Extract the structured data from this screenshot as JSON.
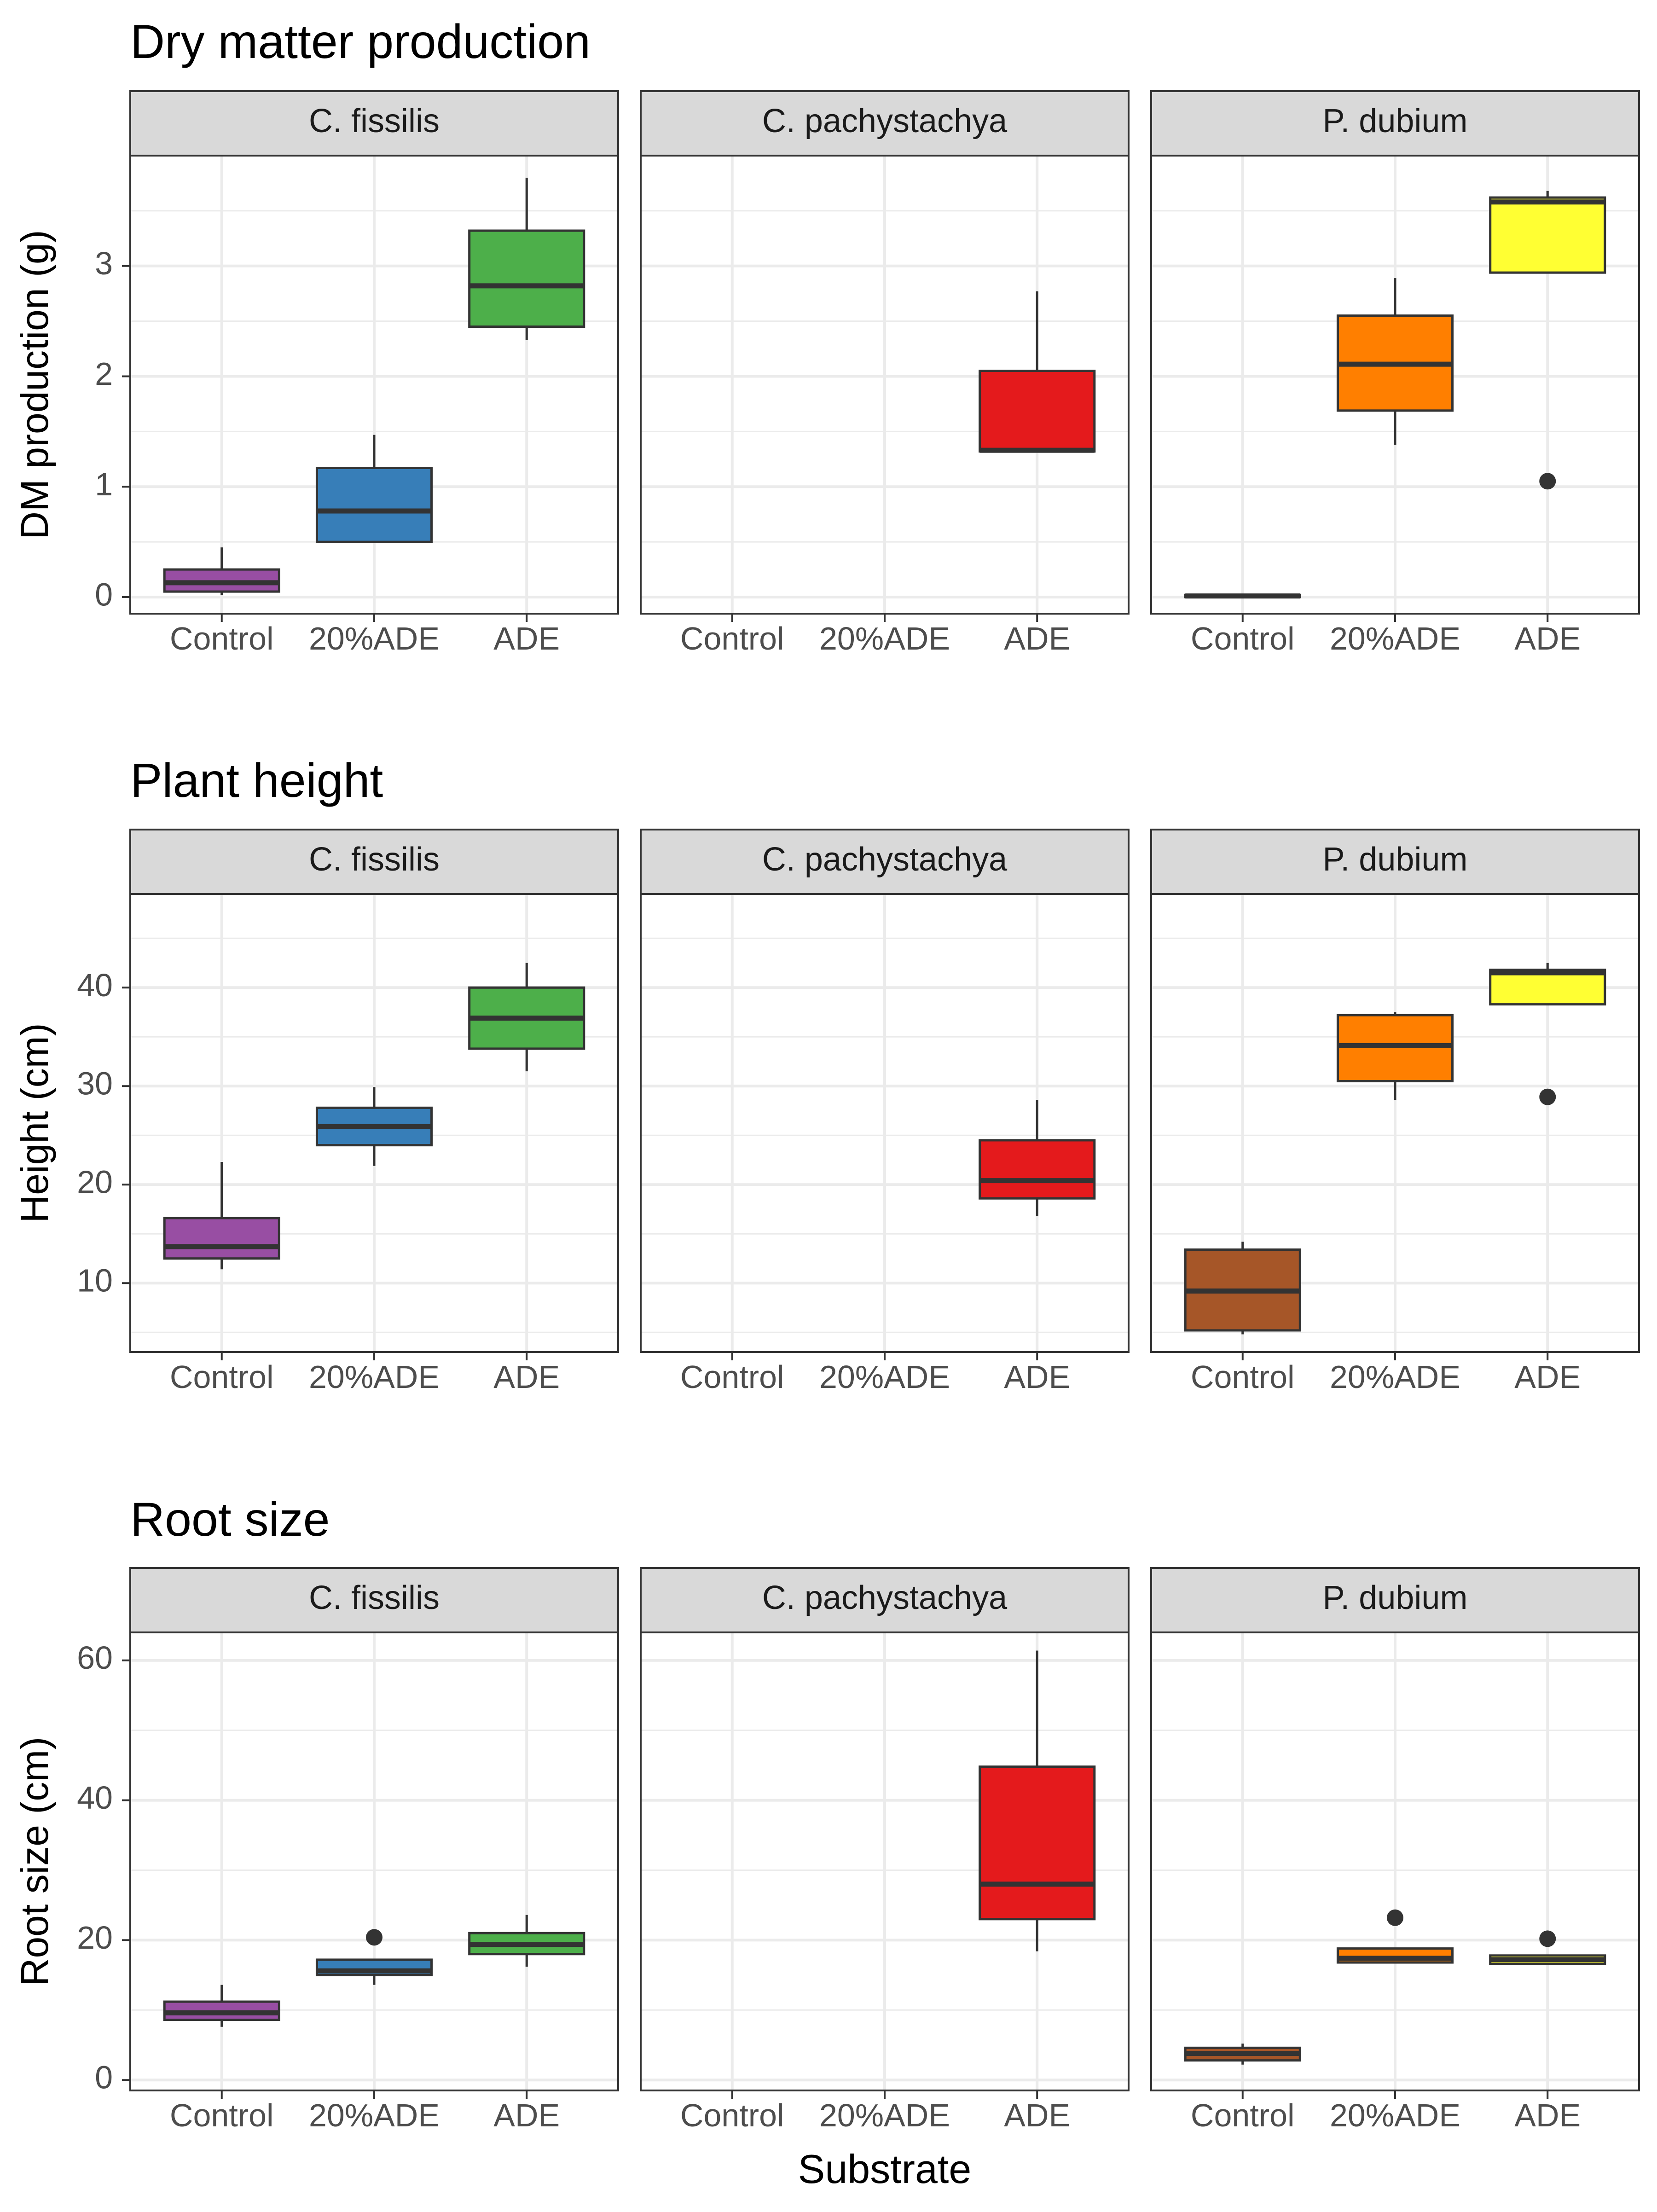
{
  "colors": {
    "Control": "#984EA3",
    "20%ADE": "#377EB8",
    "ADE": "#4DAF4A",
    "c_pachystachya_ADE": "#E41A1C",
    "p_dubium_Control": "#A65628",
    "p_dubium_20%ADE": "#FF7F00",
    "p_dubium_ADE": "#FFFF33",
    "panel_strip": "#D9D9D9",
    "grid": "#EBEBEB",
    "border": "#333333"
  },
  "x_axis_title": "Substrate",
  "chart_data": [
    {
      "type": "box",
      "title": "Dry matter production",
      "ylabel": "DM production (g)",
      "ylim": [
        -0.15,
        4.0
      ],
      "yticks": [
        0,
        1,
        2,
        3
      ],
      "ytick_labels": [
        "0",
        "1",
        "2",
        "3"
      ],
      "categories": [
        "Control",
        "20%ADE",
        "ADE"
      ],
      "panels": [
        {
          "name": "C. fissilis",
          "boxes": [
            {
              "category": "Control",
              "color": "#984EA3",
              "whisker_low": 0.02,
              "q1": 0.05,
              "median": 0.13,
              "q3": 0.25,
              "whisker_high": 0.45,
              "outliers": []
            },
            {
              "category": "20%ADE",
              "color": "#377EB8",
              "whisker_low": 0.5,
              "q1": 0.5,
              "median": 0.78,
              "q3": 1.17,
              "whisker_high": 1.47,
              "outliers": []
            },
            {
              "category": "ADE",
              "color": "#4DAF4A",
              "whisker_low": 2.33,
              "q1": 2.45,
              "median": 2.82,
              "q3": 3.32,
              "whisker_high": 3.8,
              "outliers": []
            }
          ]
        },
        {
          "name": "C. pachystachya",
          "boxes": [
            {
              "category": "ADE",
              "color": "#E41A1C",
              "whisker_low": 1.32,
              "q1": 1.32,
              "median": 1.33,
              "q3": 2.05,
              "whisker_high": 2.77,
              "outliers": []
            }
          ]
        },
        {
          "name": "P. dubium",
          "boxes": [
            {
              "category": "Control",
              "color": "#A65628",
              "whisker_low": 0.0,
              "q1": 0.0,
              "median": 0.01,
              "q3": 0.02,
              "whisker_high": 0.02,
              "outliers": []
            },
            {
              "category": "20%ADE",
              "color": "#FF7F00",
              "whisker_low": 1.38,
              "q1": 1.69,
              "median": 2.11,
              "q3": 2.55,
              "whisker_high": 2.89,
              "outliers": []
            },
            {
              "category": "ADE",
              "color": "#FFFF33",
              "whisker_low": 2.94,
              "q1": 2.94,
              "median": 3.58,
              "q3": 3.62,
              "whisker_high": 3.68,
              "outliers": [
                1.05
              ]
            }
          ]
        }
      ]
    },
    {
      "type": "box",
      "title": "Plant height",
      "ylabel": "Height (cm)",
      "ylim": [
        3,
        49.5
      ],
      "yticks": [
        10,
        20,
        30,
        40
      ],
      "ytick_labels": [
        "10",
        "20",
        "30",
        "40"
      ],
      "categories": [
        "Control",
        "20%ADE",
        "ADE"
      ],
      "panels": [
        {
          "name": "C. fissilis",
          "boxes": [
            {
              "category": "Control",
              "color": "#984EA3",
              "whisker_low": 11.4,
              "q1": 12.5,
              "median": 13.7,
              "q3": 16.6,
              "whisker_high": 22.3,
              "outliers": []
            },
            {
              "category": "20%ADE",
              "color": "#377EB8",
              "whisker_low": 21.9,
              "q1": 24.0,
              "median": 25.9,
              "q3": 27.8,
              "whisker_high": 29.9,
              "outliers": []
            },
            {
              "category": "ADE",
              "color": "#4DAF4A",
              "whisker_low": 31.5,
              "q1": 33.8,
              "median": 36.9,
              "q3": 40.0,
              "whisker_high": 42.5,
              "outliers": []
            }
          ]
        },
        {
          "name": "C. pachystachya",
          "boxes": [
            {
              "category": "ADE",
              "color": "#E41A1C",
              "whisker_low": 16.8,
              "q1": 18.6,
              "median": 20.4,
              "q3": 24.5,
              "whisker_high": 28.6,
              "outliers": []
            }
          ]
        },
        {
          "name": "P. dubium",
          "boxes": [
            {
              "category": "Control",
              "color": "#A65628",
              "whisker_low": 4.8,
              "q1": 5.2,
              "median": 9.2,
              "q3": 13.4,
              "whisker_high": 14.2,
              "outliers": []
            },
            {
              "category": "20%ADE",
              "color": "#FF7F00",
              "whisker_low": 28.6,
              "q1": 30.5,
              "median": 34.1,
              "q3": 37.2,
              "whisker_high": 37.5,
              "outliers": []
            },
            {
              "category": "ADE",
              "color": "#FFFF33",
              "whisker_low": 38.3,
              "q1": 38.3,
              "median": 41.5,
              "q3": 41.8,
              "whisker_high": 42.5,
              "outliers": [
                28.9
              ]
            }
          ]
        }
      ]
    },
    {
      "type": "box",
      "title": "Root size",
      "ylabel": "Root size (cm)",
      "ylim": [
        -1.5,
        64
      ],
      "yticks": [
        0,
        20,
        40,
        60
      ],
      "ytick_labels": [
        "0",
        "20",
        "40",
        "60"
      ],
      "categories": [
        "Control",
        "20%ADE",
        "ADE"
      ],
      "panels": [
        {
          "name": "C. fissilis",
          "boxes": [
            {
              "category": "Control",
              "color": "#984EA3",
              "whisker_low": 7.6,
              "q1": 8.6,
              "median": 9.6,
              "q3": 11.2,
              "whisker_high": 13.6,
              "outliers": []
            },
            {
              "category": "20%ADE",
              "color": "#377EB8",
              "whisker_low": 13.6,
              "q1": 15.0,
              "median": 15.6,
              "q3": 17.2,
              "whisker_high": 17.2,
              "outliers": [
                20.4
              ]
            },
            {
              "category": "ADE",
              "color": "#4DAF4A",
              "whisker_low": 16.2,
              "q1": 18.0,
              "median": 19.4,
              "q3": 21.0,
              "whisker_high": 23.6,
              "outliers": []
            }
          ]
        },
        {
          "name": "C. pachystachya",
          "boxes": [
            {
              "category": "ADE",
              "color": "#E41A1C",
              "whisker_low": 18.4,
              "q1": 23.0,
              "median": 28.0,
              "q3": 44.8,
              "whisker_high": 61.4,
              "outliers": []
            }
          ]
        },
        {
          "name": "P. dubium",
          "boxes": [
            {
              "category": "Control",
              "color": "#A65628",
              "whisker_low": 2.2,
              "q1": 2.8,
              "median": 3.8,
              "q3": 4.6,
              "whisker_high": 5.2,
              "outliers": []
            },
            {
              "category": "20%ADE",
              "color": "#FF7F00",
              "whisker_low": 16.8,
              "q1": 16.8,
              "median": 17.4,
              "q3": 18.8,
              "whisker_high": 18.8,
              "outliers": [
                23.2
              ]
            },
            {
              "category": "ADE",
              "color": "#FFFF33",
              "whisker_low": 16.6,
              "q1": 16.6,
              "median": 17.2,
              "q3": 17.8,
              "whisker_high": 17.8,
              "outliers": [
                20.2
              ]
            }
          ]
        }
      ]
    }
  ]
}
